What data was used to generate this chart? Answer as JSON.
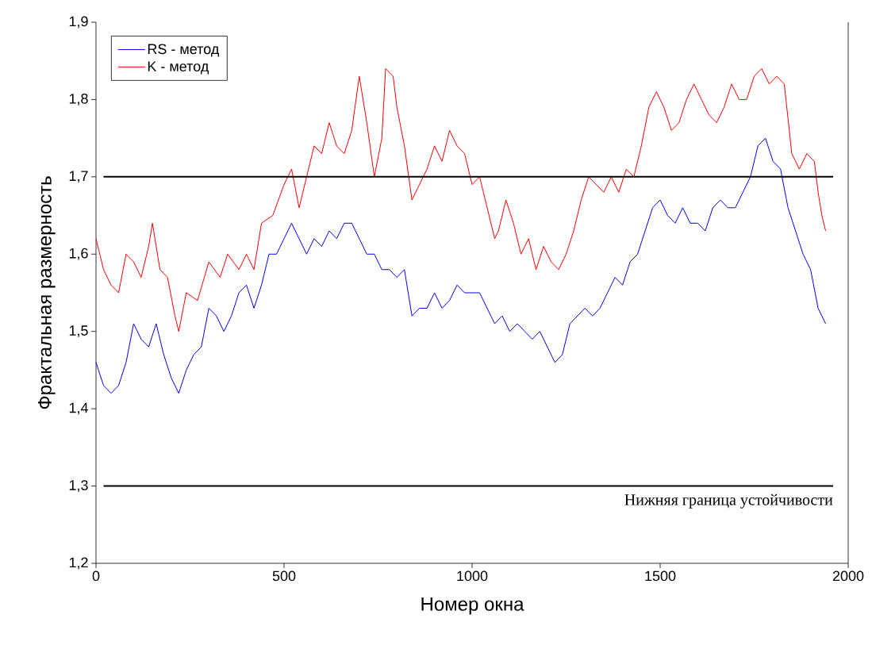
{
  "chart_data": {
    "type": "line",
    "xlabel": "Номер окна",
    "ylabel": "Фрактальная размерность",
    "xlim": [
      0,
      2000
    ],
    "xticks": [
      0,
      500,
      1000,
      1500,
      2000
    ],
    "ylim": [
      1.2,
      1.9
    ],
    "yticks": [
      {
        "value": 1.2,
        "label": "1,2"
      },
      {
        "value": 1.3,
        "label": "1,3"
      },
      {
        "value": 1.4,
        "label": "1,4"
      },
      {
        "value": 1.5,
        "label": "1,5"
      },
      {
        "value": 1.6,
        "label": "1,6"
      },
      {
        "value": 1.7,
        "label": "1,7"
      },
      {
        "value": 1.8,
        "label": "1,8"
      },
      {
        "value": 1.9,
        "label": "1,9"
      }
    ],
    "legend": "top left",
    "grid": false,
    "marker": "none",
    "line_style": "solid",
    "ref_lines": [
      {
        "axis": "y",
        "value": 1.7,
        "color": "#000000"
      },
      {
        "axis": "y",
        "value": 1.3,
        "label": "Нижняя граница устойчивости",
        "color": "#000000"
      }
    ],
    "series": [
      {
        "name": "RS - метод",
        "color": "#0000ff",
        "x": [
          0,
          20,
          40,
          60,
          80,
          100,
          120,
          140,
          160,
          180,
          200,
          220,
          240,
          260,
          280,
          300,
          320,
          340,
          360,
          380,
          400,
          420,
          440,
          460,
          480,
          500,
          520,
          540,
          560,
          580,
          600,
          620,
          640,
          660,
          680,
          700,
          720,
          740,
          760,
          780,
          800,
          820,
          840,
          860,
          880,
          900,
          920,
          940,
          960,
          980,
          1000,
          1020,
          1040,
          1060,
          1080,
          1100,
          1120,
          1140,
          1160,
          1180,
          1200,
          1220,
          1240,
          1260,
          1280,
          1300,
          1320,
          1340,
          1360,
          1380,
          1400,
          1420,
          1440,
          1460,
          1480,
          1500,
          1520,
          1540,
          1560,
          1580,
          1600,
          1620,
          1640,
          1660,
          1680,
          1700,
          1720,
          1740,
          1760,
          1780,
          1800,
          1820,
          1840,
          1860,
          1880,
          1900,
          1920,
          1940
        ],
        "values": [
          1.46,
          1.43,
          1.42,
          1.43,
          1.46,
          1.51,
          1.49,
          1.48,
          1.51,
          1.47,
          1.44,
          1.42,
          1.45,
          1.47,
          1.48,
          1.53,
          1.52,
          1.5,
          1.52,
          1.55,
          1.56,
          1.53,
          1.56,
          1.6,
          1.6,
          1.62,
          1.64,
          1.62,
          1.6,
          1.62,
          1.61,
          1.63,
          1.62,
          1.64,
          1.64,
          1.62,
          1.6,
          1.6,
          1.58,
          1.58,
          1.57,
          1.58,
          1.52,
          1.53,
          1.53,
          1.55,
          1.53,
          1.54,
          1.56,
          1.55,
          1.55,
          1.55,
          1.53,
          1.51,
          1.52,
          1.5,
          1.51,
          1.5,
          1.49,
          1.5,
          1.48,
          1.46,
          1.47,
          1.51,
          1.52,
          1.53,
          1.52,
          1.53,
          1.55,
          1.57,
          1.56,
          1.59,
          1.6,
          1.63,
          1.66,
          1.67,
          1.65,
          1.64,
          1.66,
          1.64,
          1.64,
          1.63,
          1.66,
          1.67,
          1.66,
          1.66,
          1.68,
          1.7,
          1.74,
          1.75,
          1.72,
          1.71,
          1.66,
          1.63,
          1.6,
          1.58,
          1.53,
          1.51
        ]
      },
      {
        "name": "K - метод",
        "color": "#ff0000",
        "x": [
          0,
          20,
          40,
          60,
          80,
          100,
          120,
          140,
          150,
          170,
          190,
          210,
          220,
          240,
          270,
          300,
          330,
          350,
          380,
          400,
          420,
          440,
          470,
          500,
          520,
          540,
          560,
          580,
          600,
          620,
          640,
          660,
          680,
          700,
          720,
          740,
          760,
          770,
          790,
          800,
          820,
          840,
          860,
          880,
          900,
          920,
          940,
          960,
          980,
          1000,
          1020,
          1040,
          1060,
          1070,
          1090,
          1110,
          1130,
          1150,
          1170,
          1190,
          1210,
          1230,
          1250,
          1270,
          1290,
          1310,
          1330,
          1350,
          1370,
          1390,
          1410,
          1430,
          1450,
          1470,
          1490,
          1510,
          1530,
          1550,
          1570,
          1590,
          1610,
          1630,
          1650,
          1670,
          1690,
          1710,
          1730,
          1750,
          1770,
          1790,
          1810,
          1830,
          1850,
          1870,
          1890,
          1910,
          1920,
          1930,
          1940
        ],
        "values": [
          1.62,
          1.58,
          1.56,
          1.55,
          1.6,
          1.59,
          1.57,
          1.61,
          1.64,
          1.58,
          1.57,
          1.52,
          1.5,
          1.55,
          1.54,
          1.59,
          1.57,
          1.6,
          1.58,
          1.6,
          1.58,
          1.64,
          1.65,
          1.69,
          1.71,
          1.66,
          1.7,
          1.74,
          1.73,
          1.77,
          1.74,
          1.73,
          1.76,
          1.83,
          1.77,
          1.7,
          1.75,
          1.84,
          1.83,
          1.79,
          1.74,
          1.67,
          1.69,
          1.71,
          1.74,
          1.72,
          1.76,
          1.74,
          1.73,
          1.69,
          1.7,
          1.66,
          1.62,
          1.63,
          1.67,
          1.64,
          1.6,
          1.62,
          1.58,
          1.61,
          1.59,
          1.58,
          1.6,
          1.63,
          1.67,
          1.7,
          1.69,
          1.68,
          1.7,
          1.68,
          1.71,
          1.7,
          1.74,
          1.79,
          1.81,
          1.79,
          1.76,
          1.77,
          1.8,
          1.82,
          1.8,
          1.78,
          1.77,
          1.79,
          1.82,
          1.8,
          1.8,
          1.83,
          1.84,
          1.82,
          1.83,
          1.82,
          1.73,
          1.71,
          1.73,
          1.72,
          1.68,
          1.65,
          1.63
        ]
      }
    ]
  }
}
